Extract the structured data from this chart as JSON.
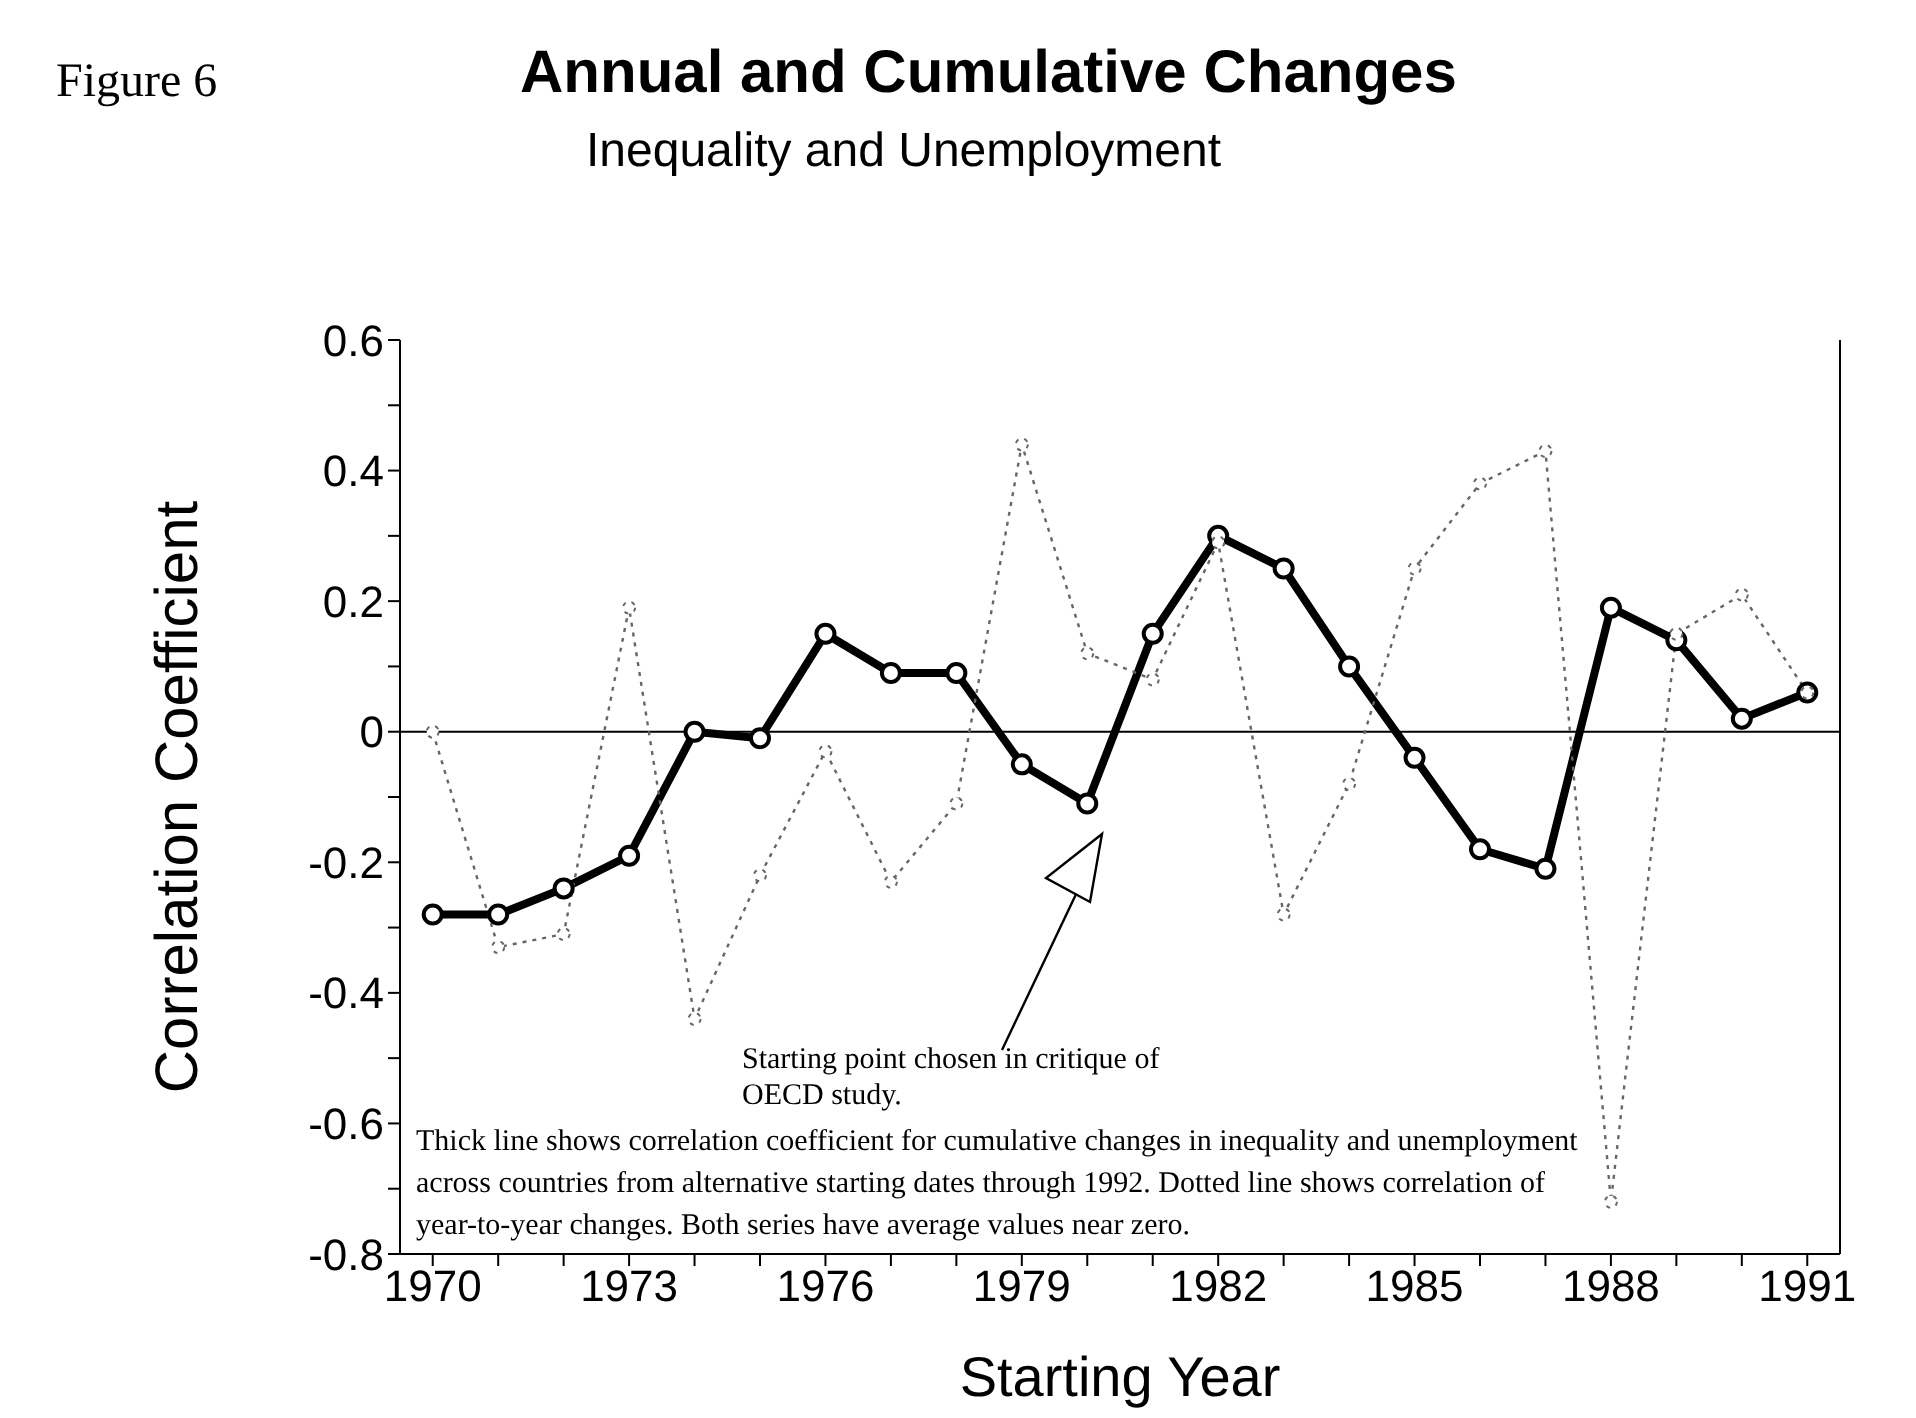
{
  "chart_data": {
    "type": "line",
    "title": "Annual and Cumulative Changes",
    "subtitle": "Inequality and Unemployment",
    "xlabel": "Starting Year",
    "ylabel": "Correlation Coefficient",
    "annotations": [
      "Figure 6",
      "Thick line  shows correlation coefficient for cumulative changes in inequality and unemployment across countries from alternative starting dates through 1992. Dotted line shows correlation of year-to-year changes.  Both series have average values near zero.",
      "Starting point chosen in critique of OECD study."
    ],
    "x": [
      1970,
      1971,
      1972,
      1973,
      1974,
      1975,
      1976,
      1977,
      1978,
      1979,
      1980,
      1981,
      1982,
      1983,
      1984,
      1985,
      1986,
      1987,
      1988,
      1989,
      1990,
      1991
    ],
    "series": [
      {
        "color": "#000000",
        "line_style": "solid",
        "values": [
          -0.28,
          -0.28,
          -0.24,
          -0.19,
          0.0,
          -0.01,
          0.15,
          0.09,
          0.09,
          -0.05,
          -0.11,
          0.15,
          0.3,
          0.25,
          0.1,
          -0.04,
          -0.18,
          -0.21,
          0.19,
          0.14,
          0.02,
          0.06
        ]
      },
      {
        "color": "#666666",
        "line_style": "dotted",
        "values": [
          0.0,
          -0.33,
          -0.31,
          0.19,
          -0.44,
          -0.22,
          -0.03,
          -0.23,
          -0.11,
          0.44,
          0.12,
          0.08,
          0.29,
          -0.28,
          -0.08,
          0.25,
          0.38,
          0.43,
          -0.72,
          0.15,
          0.21,
          0.06
        ]
      }
    ],
    "xlim": [
      1969.5,
      1991.5
    ],
    "xticks": [
      1970,
      {
        "value": 1971,
        "label": null
      },
      {
        "value": 1972,
        "label": null
      },
      1973,
      {
        "value": 1974,
        "label": null
      },
      {
        "value": 1975,
        "label": null
      },
      1976,
      {
        "value": 1977,
        "label": null
      },
      {
        "value": 1978,
        "label": null
      },
      1979,
      {
        "value": 1980,
        "label": null
      },
      {
        "value": 1981,
        "label": null
      },
      1982,
      {
        "value": 1983,
        "label": null
      },
      {
        "value": 1984,
        "label": null
      },
      1985,
      {
        "value": 1986,
        "label": null
      },
      {
        "value": 1987,
        "label": null
      },
      1988,
      {
        "value": 1989,
        "label": null
      },
      {
        "value": 1990,
        "label": null
      },
      1991
    ],
    "ylim": [
      -0.8,
      0.6
    ],
    "yticks": [
      -0.8,
      {
        "value": -0.7,
        "label": null
      },
      -0.6,
      {
        "value": -0.5,
        "label": null
      },
      -0.4,
      {
        "value": -0.3,
        "label": null
      },
      -0.2,
      {
        "value": -0.1,
        "label": null
      },
      0,
      {
        "value": 0.1,
        "label": null
      },
      0.2,
      {
        "value": 0.3,
        "label": null
      },
      0.4,
      {
        "value": 0.5,
        "label": null
      },
      0.6
    ],
    "ref_lines": [
      {
        "axis": "y",
        "value": 0,
        "color": "#000000"
      }
    ],
    "marker": "circle",
    "grid": false,
    "legend": false
  }
}
